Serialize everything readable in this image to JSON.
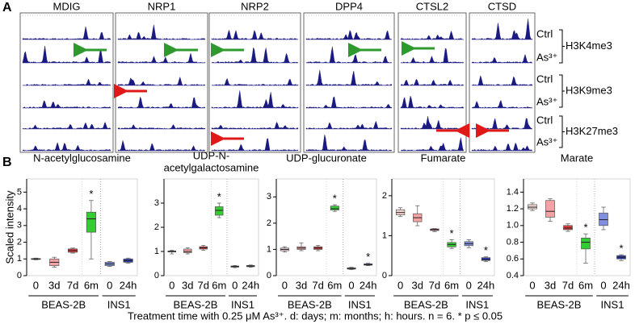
{
  "panel_a": {
    "label": "A",
    "columns": [
      "MDIG",
      "NRP1",
      "NRP2",
      "DPP4",
      "CTSL2",
      "CTSD"
    ],
    "rows": [
      {
        "conditions": [
          "Ctrl",
          "As³⁺"
        ],
        "mark": "H3K4me3"
      },
      {
        "conditions": [
          "Ctrl",
          "As³⁺"
        ],
        "mark": "H3K9me3"
      },
      {
        "conditions": [
          "Ctrl",
          "As³⁺"
        ],
        "mark": "H3K27me3"
      }
    ]
  },
  "panel_b": {
    "label": "B",
    "ylabel": "Scaled intensity",
    "caption": "Treatment time with 0.25 μM As³⁺.  d: days;  m: months;  h: hours. n = 6.   * p ≤ 0.05"
  },
  "chart_data": [
    {
      "type": "box",
      "title": [
        "N-acetylglucosamine"
      ],
      "categories": [
        "0",
        "3d",
        "7d",
        "6m",
        "0",
        "24h"
      ],
      "groups": [
        {
          "name": "BEAS-2B",
          "categories": [
            "0",
            "3d",
            "7d",
            "6m"
          ]
        },
        {
          "name": "INS1",
          "categories": [
            "0",
            "24h"
          ]
        }
      ],
      "colors": [
        "#f7d4d4",
        "#f3a3a3",
        "#e23a3a",
        "#33cc33",
        "#8090e0",
        "#2a3ab0"
      ],
      "ylim": [
        0,
        5.5
      ],
      "yticks": [
        0,
        1,
        2,
        3,
        4,
        5
      ],
      "boxes": [
        {
          "whisker_low": 0.95,
          "q1": 0.98,
          "median": 1.0,
          "q3": 1.02,
          "whisker_high": 1.05
        },
        {
          "whisker_low": 0.5,
          "q1": 0.6,
          "median": 0.8,
          "q3": 1.0,
          "whisker_high": 1.1
        },
        {
          "whisker_low": 1.35,
          "q1": 1.4,
          "median": 1.5,
          "q3": 1.6,
          "whisker_high": 1.65
        },
        {
          "whisker_low": 1.0,
          "q1": 2.6,
          "median": 3.4,
          "q3": 3.8,
          "whisker_high": 4.5
        },
        {
          "whisker_low": 0.55,
          "q1": 0.6,
          "median": 0.7,
          "q3": 0.8,
          "whisker_high": 0.85
        },
        {
          "whisker_low": 0.75,
          "q1": 0.8,
          "median": 0.9,
          "q3": 1.0,
          "whisker_high": 1.05
        }
      ],
      "annotations": [
        null,
        null,
        null,
        "*",
        null,
        null
      ]
    },
    {
      "type": "box",
      "title": [
        "UDP-N-",
        "acetylgalactosamine"
      ],
      "categories": [
        "0",
        "3d",
        "7d",
        "6m",
        "0",
        "24h"
      ],
      "groups": [
        {
          "name": "BEAS-2B",
          "categories": [
            "0",
            "3d",
            "7d",
            "6m"
          ]
        },
        {
          "name": "INS1",
          "categories": [
            "0",
            "24h"
          ]
        }
      ],
      "colors": [
        "#f7d4d4",
        "#f3a3a3",
        "#e23a3a",
        "#33cc33",
        "#8090e0",
        "#2a3ab0"
      ],
      "ylim": [
        0,
        3.8
      ],
      "yticks": [
        0,
        1,
        2,
        3
      ],
      "boxes": [
        {
          "whisker_low": 0.9,
          "q1": 0.98,
          "median": 1.0,
          "q3": 1.02,
          "whisker_high": 1.05
        },
        {
          "whisker_low": 0.9,
          "q1": 0.95,
          "median": 1.0,
          "q3": 1.1,
          "whisker_high": 1.15
        },
        {
          "whisker_low": 1.05,
          "q1": 1.1,
          "median": 1.15,
          "q3": 1.2,
          "whisker_high": 1.25
        },
        {
          "whisker_low": 2.4,
          "q1": 2.5,
          "median": 2.7,
          "q3": 2.85,
          "whisker_high": 3.0
        },
        {
          "whisker_low": 0.33,
          "q1": 0.35,
          "median": 0.38,
          "q3": 0.4,
          "whisker_high": 0.42
        },
        {
          "whisker_low": 0.35,
          "q1": 0.37,
          "median": 0.4,
          "q3": 0.42,
          "whisker_high": 0.44
        }
      ],
      "annotations": [
        null,
        null,
        null,
        "*",
        null,
        null
      ]
    },
    {
      "type": "box",
      "title": [
        "UDP-glucuronate"
      ],
      "categories": [
        "0",
        "3d",
        "7d",
        "6m",
        "0",
        "24h"
      ],
      "groups": [
        {
          "name": "BEAS-2B",
          "categories": [
            "0",
            "3d",
            "7d",
            "6m"
          ]
        },
        {
          "name": "INS1",
          "categories": [
            "0",
            "24h"
          ]
        }
      ],
      "colors": [
        "#f7d4d4",
        "#f3a3a3",
        "#e23a3a",
        "#33cc33",
        "#8090e0",
        "#2a3ab0"
      ],
      "ylim": [
        0,
        3.5
      ],
      "yticks": [
        0,
        1,
        2,
        3
      ],
      "boxes": [
        {
          "whisker_low": 0.9,
          "q1": 0.95,
          "median": 1.0,
          "q3": 1.05,
          "whisker_high": 1.1
        },
        {
          "whisker_low": 0.95,
          "q1": 1.0,
          "median": 1.05,
          "q3": 1.1,
          "whisker_high": 1.25
        },
        {
          "whisker_low": 0.95,
          "q1": 1.0,
          "median": 1.05,
          "q3": 1.1,
          "whisker_high": 1.15
        },
        {
          "whisker_low": 2.45,
          "q1": 2.5,
          "median": 2.55,
          "q3": 2.65,
          "whisker_high": 2.7
        },
        {
          "whisker_low": 0.23,
          "q1": 0.25,
          "median": 0.27,
          "q3": 0.3,
          "whisker_high": 0.32
        },
        {
          "whisker_low": 0.38,
          "q1": 0.4,
          "median": 0.42,
          "q3": 0.45,
          "whisker_high": 0.47
        }
      ],
      "annotations": [
        null,
        null,
        null,
        "*",
        null,
        "*"
      ]
    },
    {
      "type": "box",
      "title": [
        "Fumarate"
      ],
      "categories": [
        "0",
        "3d",
        "7d",
        "6m",
        "0",
        "24h"
      ],
      "groups": [
        {
          "name": "BEAS-2B",
          "categories": [
            "0",
            "3d",
            "7d",
            "6m"
          ]
        },
        {
          "name": "INS1",
          "categories": [
            "0",
            "24h"
          ]
        }
      ],
      "colors": [
        "#f7d4d4",
        "#f3a3a3",
        "#e23a3a",
        "#33cc33",
        "#8090e0",
        "#2a3ab0"
      ],
      "ylim": [
        0,
        2.3
      ],
      "yticks": [
        0,
        1,
        2
      ],
      "boxes": [
        {
          "whisker_low": 1.48,
          "q1": 1.52,
          "median": 1.58,
          "q3": 1.65,
          "whisker_high": 1.7
        },
        {
          "whisker_low": 1.25,
          "q1": 1.35,
          "median": 1.45,
          "q3": 1.55,
          "whisker_high": 1.75
        },
        {
          "whisker_low": 1.1,
          "q1": 1.13,
          "median": 1.15,
          "q3": 1.17,
          "whisker_high": 1.18
        },
        {
          "whisker_low": 0.68,
          "q1": 0.72,
          "median": 0.78,
          "q3": 0.83,
          "whisker_high": 0.9
        },
        {
          "whisker_low": 0.7,
          "q1": 0.75,
          "median": 0.8,
          "q3": 0.85,
          "whisker_high": 0.9
        },
        {
          "whisker_low": 0.35,
          "q1": 0.38,
          "median": 0.4,
          "q3": 0.45,
          "whisker_high": 0.47
        }
      ],
      "annotations": [
        null,
        null,
        null,
        "*",
        null,
        "*"
      ]
    },
    {
      "type": "box",
      "title": [
        "Marate"
      ],
      "categories": [
        "0",
        "3d",
        "7d",
        "6m",
        "0",
        "24h"
      ],
      "groups": [
        {
          "name": "BEAS-2B",
          "categories": [
            "0",
            "3d",
            "7d",
            "6m"
          ]
        },
        {
          "name": "INS1",
          "categories": [
            "0",
            "24h"
          ]
        }
      ],
      "colors": [
        "#f7d4d4",
        "#f3a3a3",
        "#e23a3a",
        "#33cc33",
        "#8090e0",
        "#2a3ab0"
      ],
      "ylim": [
        0.4,
        1.5
      ],
      "yticks": [
        0.4,
        0.6,
        0.8,
        {
          "value": 1,
          "label": "1.0"
        },
        1.2,
        1.4
      ],
      "boxes": [
        {
          "whisker_low": 1.18,
          "q1": 1.2,
          "median": 1.22,
          "q3": 1.25,
          "whisker_high": 1.27
        },
        {
          "whisker_low": 1.05,
          "q1": 1.1,
          "median": 1.17,
          "q3": 1.3,
          "whisker_high": 1.32
        },
        {
          "whisker_low": 0.93,
          "q1": 0.95,
          "median": 0.97,
          "q3": 1.0,
          "whisker_high": 1.02
        },
        {
          "whisker_low": 0.55,
          "q1": 0.72,
          "median": 0.8,
          "q3": 0.85,
          "whisker_high": 0.9
        },
        {
          "whisker_low": 0.95,
          "q1": 1.0,
          "median": 1.07,
          "q3": 1.15,
          "whisker_high": 1.22
        },
        {
          "whisker_low": 0.58,
          "q1": 0.6,
          "median": 0.62,
          "q3": 0.64,
          "whisker_high": 0.65
        }
      ],
      "annotations": [
        null,
        null,
        null,
        "*",
        null,
        "*"
      ]
    }
  ]
}
